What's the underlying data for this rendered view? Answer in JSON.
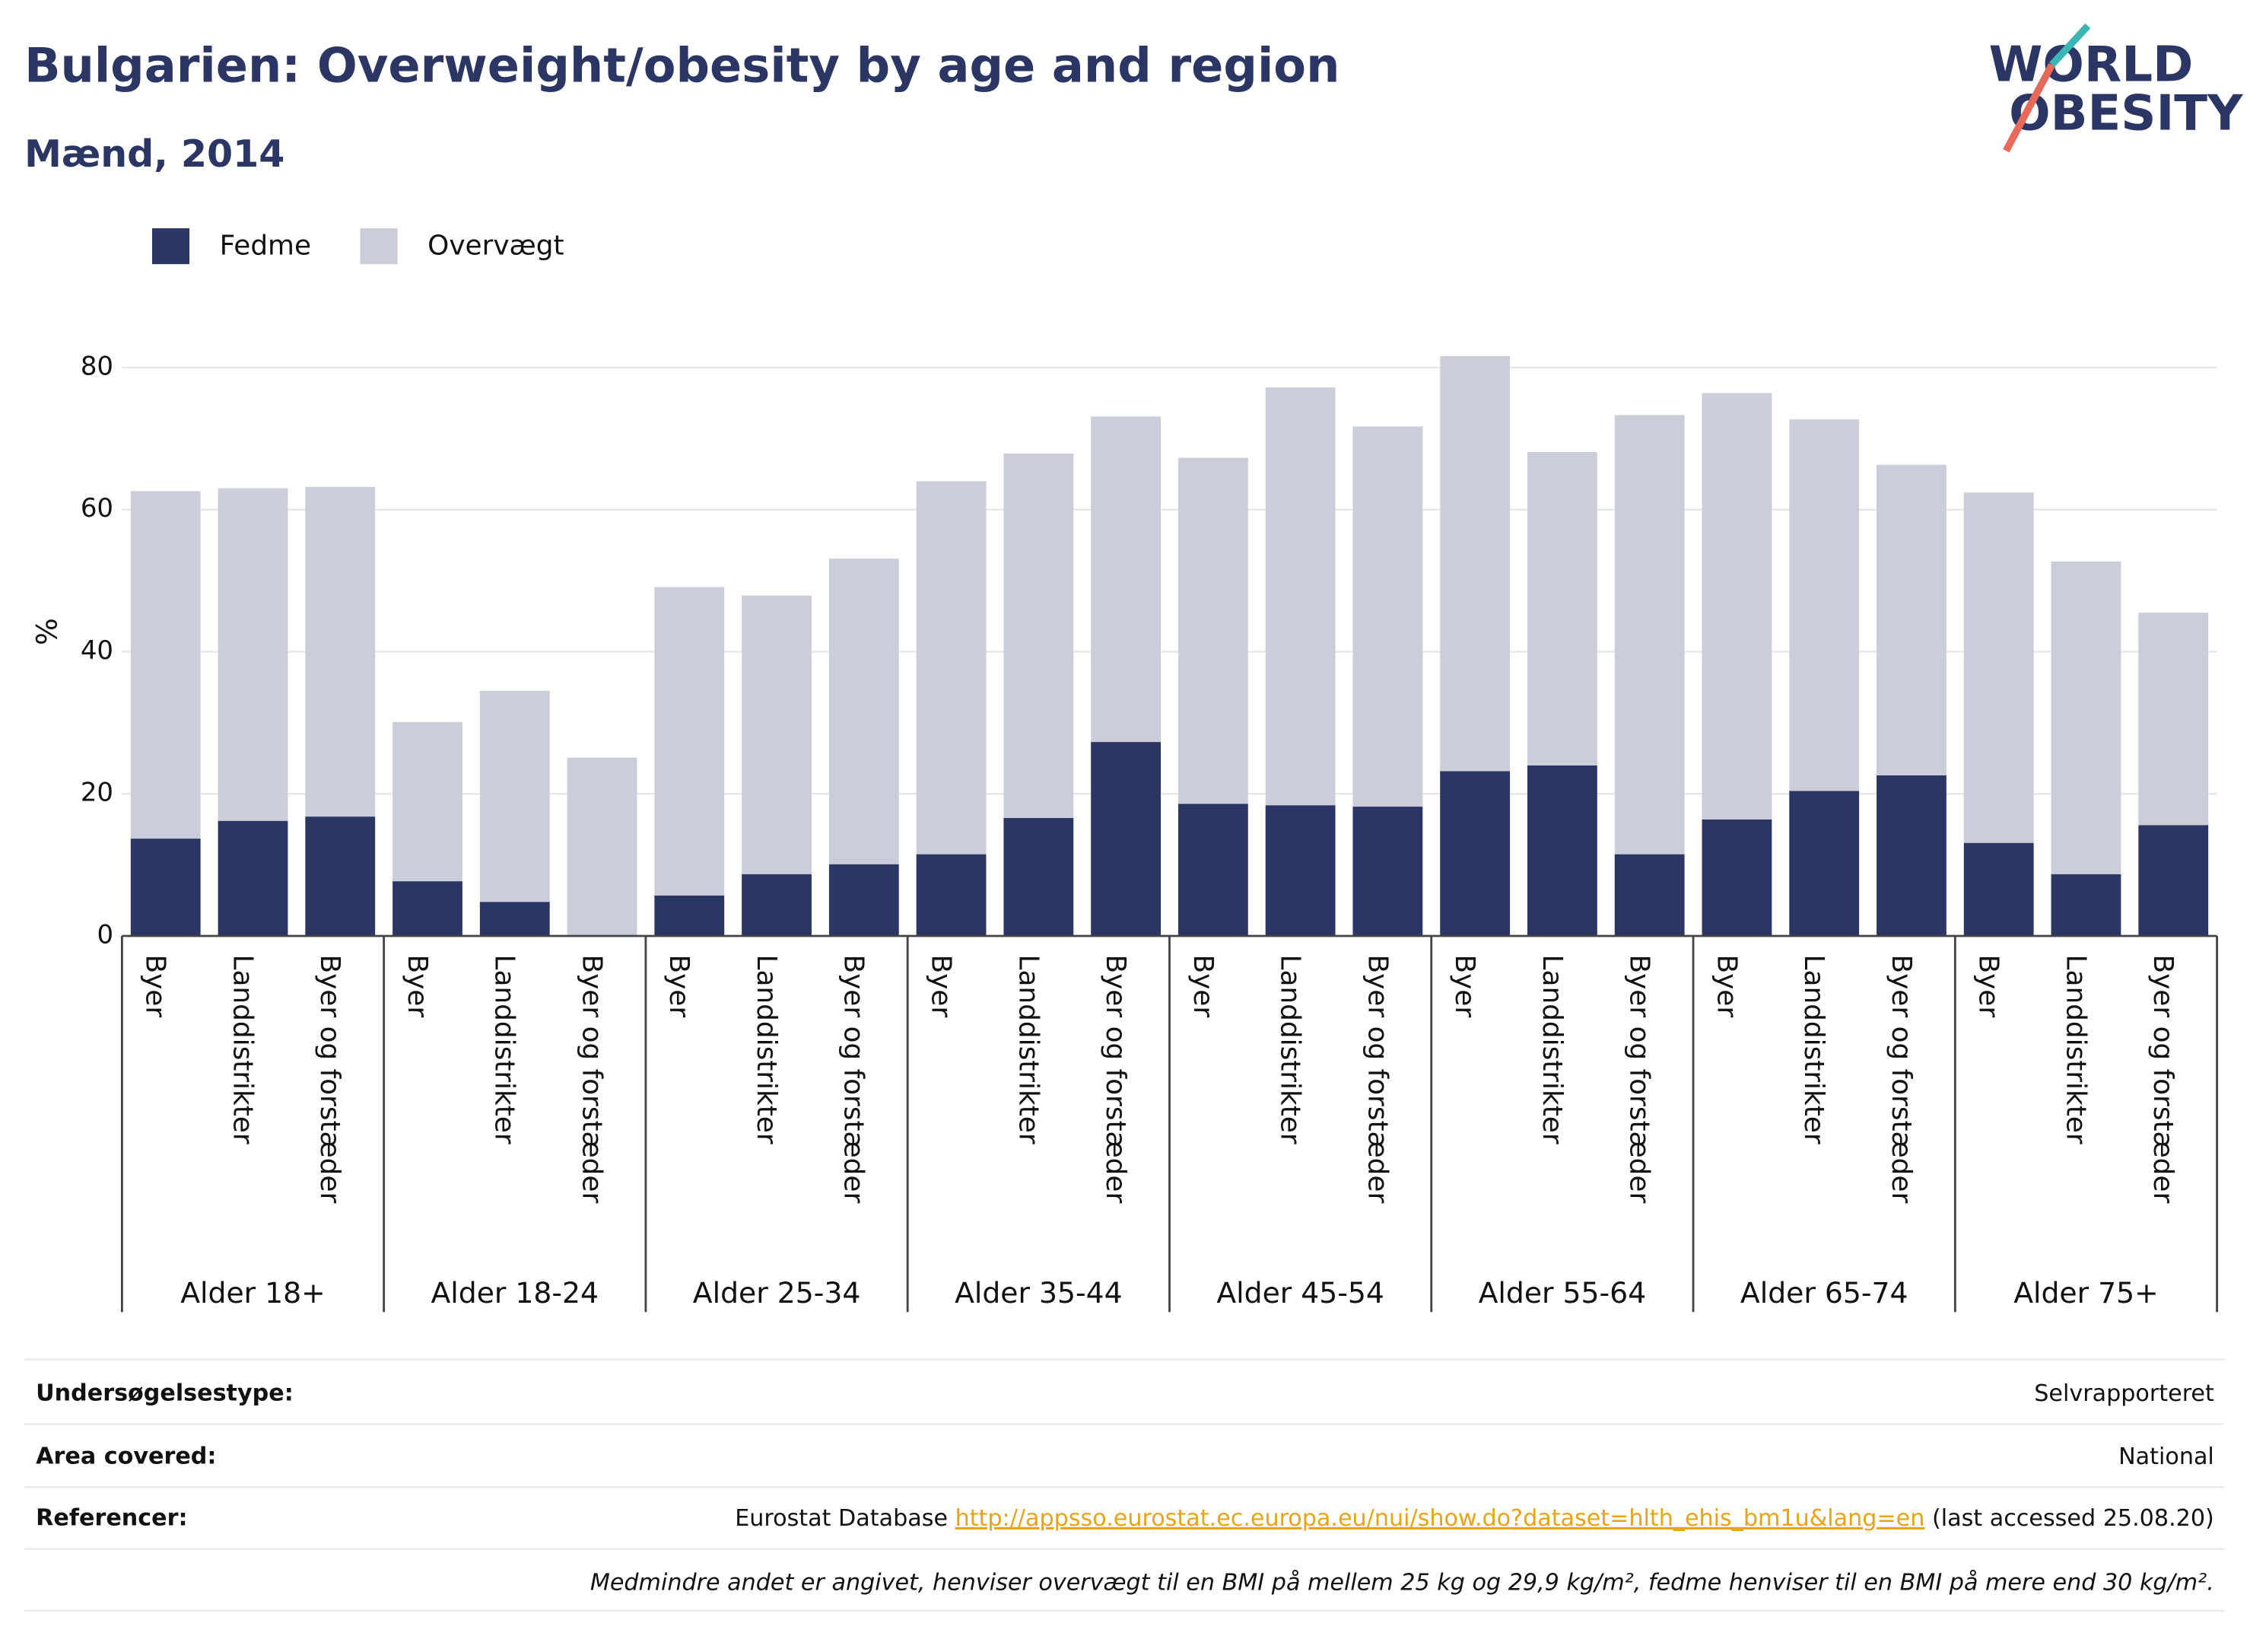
{
  "chart_data": {
    "type": "stacked_bar",
    "title": "Bulgarien: Overweight/obesity by age and region",
    "subtitle": "Mænd, 2014",
    "logo": [
      "WORLD",
      "OBESITY"
    ],
    "y_label": "%",
    "groups": [
      "Alder 18+",
      "Alder 18-24",
      "Alder 25-34",
      "Alder 35-44",
      "Alder 45-54",
      "Alder 55-64",
      "Alder 65-74",
      "Alder 75+"
    ],
    "categories": [
      "Byer",
      "Landdistrikter",
      "Byer og forstæder",
      "Byer",
      "Landdistrikter",
      "Byer og forstæder",
      "Byer",
      "Landdistrikter",
      "Byer og forstæder",
      "Byer",
      "Landdistrikter",
      "Byer og forstæder",
      "Byer",
      "Landdistrikter",
      "Byer og forstæder",
      "Byer",
      "Landdistrikter",
      "Byer og forstæder",
      "Byer",
      "Landdistrikter",
      "Byer og forstæder",
      "Byer",
      "Landdistrikter",
      "Byer og forstæder"
    ],
    "series": [
      {
        "name": "Fedme",
        "color": "#2b3664",
        "values": [
          13.7,
          16.2,
          16.8,
          7.7,
          4.8,
          null,
          5.7,
          8.7,
          10.1,
          11.5,
          16.6,
          27.3,
          18.6,
          18.4,
          18.2,
          23.2,
          24.0,
          11.5,
          16.4,
          20.4,
          22.6,
          13.1,
          8.7,
          15.6
        ]
      },
      {
        "name": "Overvægt",
        "color": "#cbcdd8",
        "values": [
          48.9,
          46.8,
          46.4,
          22.4,
          29.7,
          25.1,
          43.4,
          39.2,
          43.0,
          52.5,
          51.3,
          45.8,
          48.7,
          58.8,
          53.5,
          58.4,
          44.1,
          61.8,
          60.0,
          52.3,
          43.7,
          49.3,
          44.0,
          29.9
        ]
      }
    ],
    "ylim": [
      0,
      86
    ],
    "yticks": [
      0,
      20,
      40,
      60,
      80
    ],
    "grid": true,
    "legend": "top-left"
  },
  "footer": {
    "rows": [
      {
        "label": "Undersøgelsestype:",
        "value": "Selvrapporteret"
      },
      {
        "label": "Area covered:",
        "value": "National"
      },
      {
        "label": "Referencer:",
        "value": "Eurostat Database",
        "link": "http://appsso.eurostat.ec.europa.eu/nui/show.do?dataset=hlth_ehis_bm1u&lang=en",
        "suffix": "(last accessed 25.08.20)"
      }
    ],
    "note": "Medmindre andet er angivet, henviser overvægt til en BMI på mellem 25 kg og 29,9 kg/m², fedme henviser til en BMI på mere end 30 kg/m²."
  }
}
